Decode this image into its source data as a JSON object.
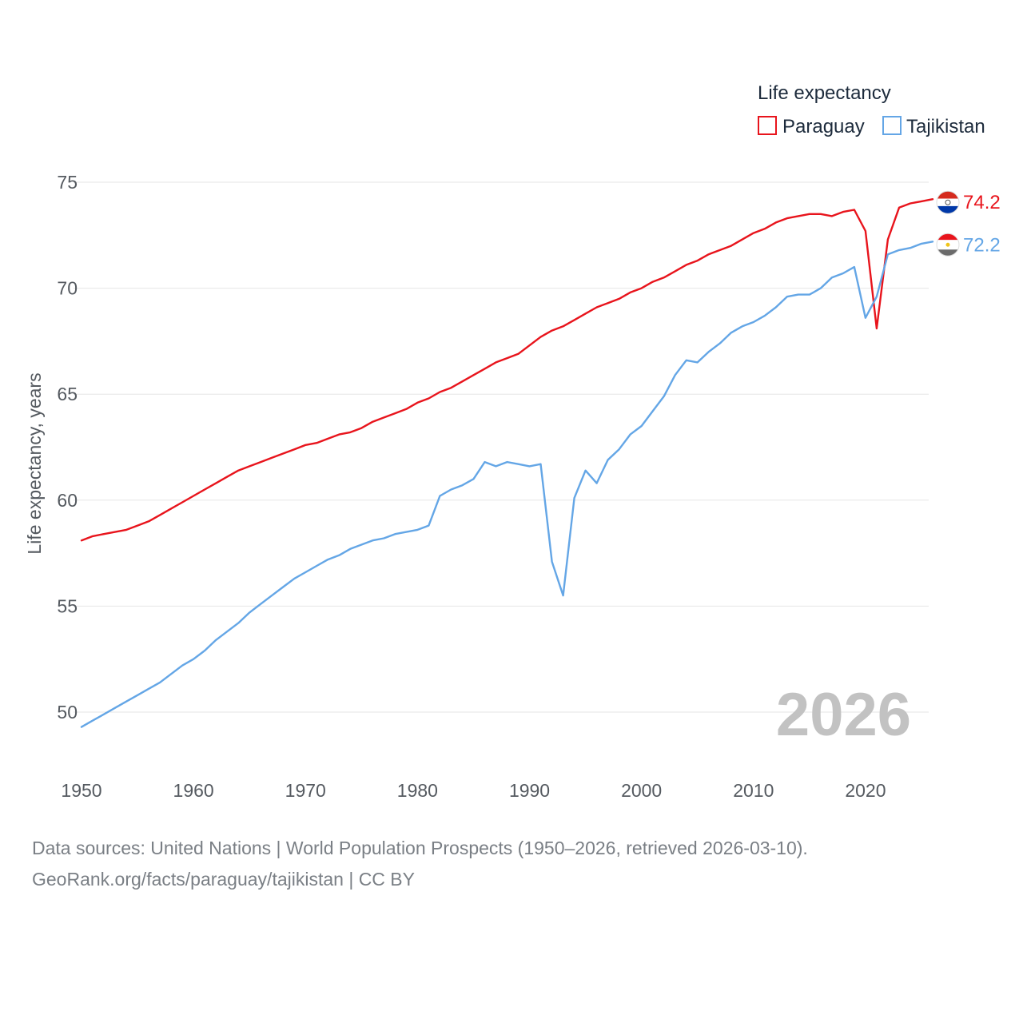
{
  "chart_data": {
    "type": "line",
    "title": "",
    "xlabel": "",
    "ylabel": "Life expectancy, years",
    "xlim": [
      1950,
      2026
    ],
    "ylim": [
      47.5,
      76.5
    ],
    "yticks": [
      50,
      55,
      60,
      65,
      70,
      75
    ],
    "xticks": [
      1950,
      1960,
      1970,
      1980,
      1990,
      2000,
      2010,
      2020
    ],
    "grid": true,
    "legend": {
      "title": "Life expectancy",
      "position": "top-right"
    },
    "current_year": "2026",
    "x": [
      1950,
      1951,
      1952,
      1953,
      1954,
      1955,
      1956,
      1957,
      1958,
      1959,
      1960,
      1961,
      1962,
      1963,
      1964,
      1965,
      1966,
      1967,
      1968,
      1969,
      1970,
      1971,
      1972,
      1973,
      1974,
      1975,
      1976,
      1977,
      1978,
      1979,
      1980,
      1981,
      1982,
      1983,
      1984,
      1985,
      1986,
      1987,
      1988,
      1989,
      1990,
      1991,
      1992,
      1993,
      1994,
      1995,
      1996,
      1997,
      1998,
      1999,
      2000,
      2001,
      2002,
      2003,
      2004,
      2005,
      2006,
      2007,
      2008,
      2009,
      2010,
      2011,
      2012,
      2013,
      2014,
      2015,
      2016,
      2017,
      2018,
      2019,
      2020,
      2021,
      2022,
      2023,
      2024,
      2025,
      2026
    ],
    "series": [
      {
        "name": "Paraguay",
        "color": "#e8141c",
        "end_label": "74.2",
        "flag": "paraguay-flag-icon",
        "values": [
          58.1,
          58.3,
          58.4,
          58.5,
          58.6,
          58.8,
          59.0,
          59.3,
          59.6,
          59.9,
          60.2,
          60.5,
          60.8,
          61.1,
          61.4,
          61.6,
          61.8,
          62.0,
          62.2,
          62.4,
          62.6,
          62.7,
          62.9,
          63.1,
          63.2,
          63.4,
          63.7,
          63.9,
          64.1,
          64.3,
          64.6,
          64.8,
          65.1,
          65.3,
          65.6,
          65.9,
          66.2,
          66.5,
          66.7,
          66.9,
          67.3,
          67.7,
          68.0,
          68.2,
          68.5,
          68.8,
          69.1,
          69.3,
          69.5,
          69.8,
          70.0,
          70.3,
          70.5,
          70.8,
          71.1,
          71.3,
          71.6,
          71.8,
          72.0,
          72.3,
          72.6,
          72.8,
          73.1,
          73.3,
          73.4,
          73.5,
          73.5,
          73.4,
          73.6,
          73.7,
          72.7,
          68.1,
          72.3,
          73.8,
          74.0,
          74.1,
          74.2
        ]
      },
      {
        "name": "Tajikistan",
        "color": "#64a6e6",
        "end_label": "72.2",
        "flag": "tajikistan-flag-icon",
        "values": [
          49.3,
          49.6,
          49.9,
          50.2,
          50.5,
          50.8,
          51.1,
          51.4,
          51.8,
          52.2,
          52.5,
          52.9,
          53.4,
          53.8,
          54.2,
          54.7,
          55.1,
          55.5,
          55.9,
          56.3,
          56.6,
          56.9,
          57.2,
          57.4,
          57.7,
          57.9,
          58.1,
          58.2,
          58.4,
          58.5,
          58.6,
          58.8,
          60.2,
          60.5,
          60.7,
          61.0,
          61.8,
          61.6,
          61.8,
          61.7,
          61.6,
          61.7,
          57.1,
          55.5,
          60.1,
          61.4,
          60.8,
          61.9,
          62.4,
          63.1,
          63.5,
          64.2,
          64.9,
          65.9,
          66.6,
          66.5,
          67.0,
          67.4,
          67.9,
          68.2,
          68.4,
          68.7,
          69.1,
          69.6,
          69.7,
          69.7,
          70.0,
          70.5,
          70.7,
          71.0,
          68.6,
          69.6,
          71.6,
          71.8,
          71.9,
          72.1,
          72.2
        ]
      }
    ]
  },
  "footer": {
    "line1": "Data sources: United Nations | World Population Prospects (1950–2026, retrieved 2026-03-10).",
    "line2": "GeoRank.org/facts/paraguay/tajikistan | CC BY"
  }
}
